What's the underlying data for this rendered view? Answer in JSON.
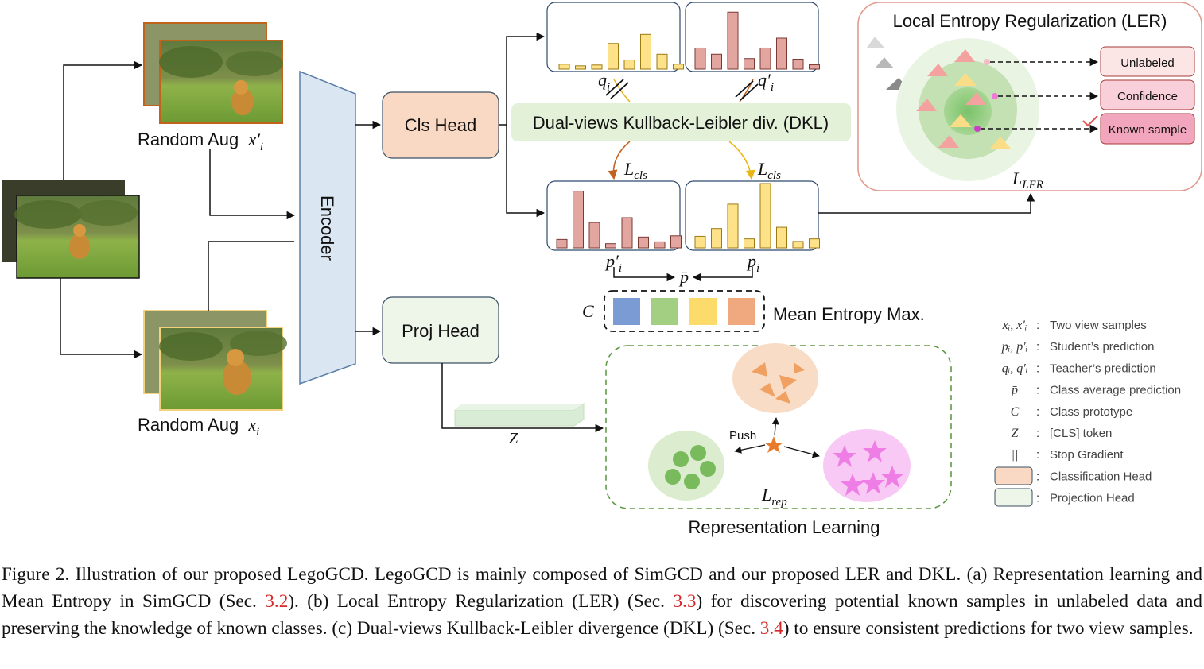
{
  "diagram": {
    "encoder_label": "Encoder",
    "cls_head_label": "Cls Head",
    "proj_head_label": "Proj Head",
    "aug_top_label": "Random Aug",
    "aug_top_var": "x′",
    "aug_top_sub": "i",
    "aug_bottom_label": "Random Aug",
    "aug_bottom_var": "x",
    "aug_bottom_sub": "i",
    "dkl_label": "Dual-views Kullback-Leibler div. (DKL)",
    "q_i": "q",
    "q_i_sub": "i",
    "q_i_prime": "q′",
    "q_i_prime_sub": "i",
    "p_i_prime": "p′",
    "p_i_prime_sub": "i",
    "p_i": "p",
    "p_i_sub": "i",
    "p_bar": "p̄",
    "l_cls_left": "L",
    "l_cls_left_sub": "cls",
    "l_cls_right": "L",
    "l_cls_right_sub": "cls",
    "prototype_label": "C",
    "mean_entropy_label": "Mean Entropy Max.",
    "z_label": "Z",
    "push_label": "Push",
    "l_rep": "L",
    "l_rep_sub": "rep",
    "representation_label": "Representation Learning",
    "ler_title": "Local Entropy Regularization (LER)",
    "ler_unlabeled": "Unlabeled",
    "ler_confidence": "Confidence",
    "ler_known": "Known sample",
    "l_ler": "L",
    "l_ler_sub": "LER",
    "prototype_colors": [
      "#7b9bd4",
      "#a3cf82",
      "#fddb6b",
      "#f0a97e"
    ],
    "histograms": {
      "q_i": [
        0.12,
        0.08,
        0.1,
        0.62,
        0.22,
        0.84,
        0.36,
        0.12
      ],
      "q_i_prime": [
        0.34,
        0.24,
        0.92,
        0.17,
        0.34,
        0.5,
        0.16,
        0.07
      ],
      "p_i_prime": [
        0.14,
        0.94,
        0.42,
        0.07,
        0.5,
        0.18,
        0.1,
        0.2
      ],
      "p_i": [
        0.18,
        0.3,
        0.68,
        0.14,
        1.0,
        0.32,
        0.1,
        0.14
      ]
    }
  },
  "legend": [
    {
      "symbol": "xᵢ, x′ᵢ",
      "desc": "Two view samples"
    },
    {
      "symbol": "pᵢ, p′ᵢ",
      "desc": "Student’s prediction"
    },
    {
      "symbol": "qᵢ, q′ᵢ",
      "desc": "Teacher’s prediction"
    },
    {
      "symbol": "p̄",
      "desc": "Class average prediction"
    },
    {
      "symbol": "C",
      "desc": "Class prototype"
    },
    {
      "symbol": "Z",
      "desc": "[CLS] token"
    },
    {
      "symbol": "||",
      "desc": "Stop Gradient"
    },
    {
      "symbol": "",
      "desc": "Classification Head"
    },
    {
      "symbol": "",
      "desc": "Projection Head"
    }
  ],
  "caption": {
    "text_1": "Figure 2.  Illustration of our proposed LegoGCD. LegoGCD is mainly composed of SimGCD and our proposed LER and DKL. (a) Representation learning and Mean Entropy in SimGCD (Sec. ",
    "ref_1": "3.2",
    "text_2": ").  (b) Local Entropy Regularization (LER) (Sec. ",
    "ref_2": "3.3",
    "text_3": ") for discovering potential known samples in unlabeled data and preserving the knowledge of known classes.  (c) Dual-views Kullback-Leibler divergence (DKL) (Sec. ",
    "ref_3": "3.4",
    "text_4": ") to ensure consistent predictions for two view samples."
  }
}
